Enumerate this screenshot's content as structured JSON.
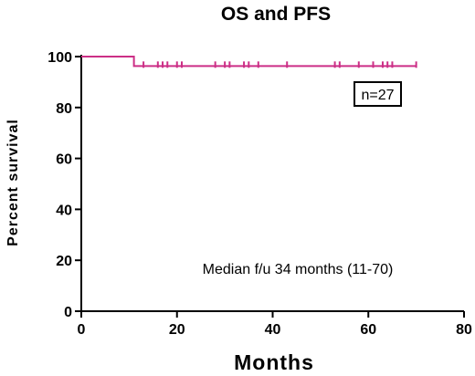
{
  "chart_data": {
    "type": "line",
    "title": "OS and PFS",
    "xlabel": "Months",
    "ylabel": "Percent survival",
    "xlim": [
      0,
      80
    ],
    "ylim": [
      0,
      100
    ],
    "x_ticks": [
      0,
      20,
      40,
      60,
      80
    ],
    "y_ticks": [
      0,
      20,
      40,
      60,
      80,
      100
    ],
    "grid": false,
    "line_color": "#cc2f86",
    "series": [
      {
        "curve": [
          {
            "x": 0,
            "y": 100
          },
          {
            "x": 11,
            "y": 100
          },
          {
            "x": 11,
            "y": 96.3
          },
          {
            "x": 70,
            "y": 96.3
          }
        ],
        "censored": [
          {
            "x": 13,
            "y": 96.3
          },
          {
            "x": 16,
            "y": 96.3
          },
          {
            "x": 17,
            "y": 96.3
          },
          {
            "x": 18,
            "y": 96.3
          },
          {
            "x": 20,
            "y": 96.3
          },
          {
            "x": 21,
            "y": 96.3
          },
          {
            "x": 28,
            "y": 96.3
          },
          {
            "x": 30,
            "y": 96.3
          },
          {
            "x": 31,
            "y": 96.3
          },
          {
            "x": 34,
            "y": 96.3
          },
          {
            "x": 35,
            "y": 96.3
          },
          {
            "x": 37,
            "y": 96.3
          },
          {
            "x": 43,
            "y": 96.3
          },
          {
            "x": 53,
            "y": 96.3
          },
          {
            "x": 54,
            "y": 96.3
          },
          {
            "x": 58,
            "y": 96.3
          },
          {
            "x": 61,
            "y": 96.3
          },
          {
            "x": 63,
            "y": 96.3
          },
          {
            "x": 64,
            "y": 96.3
          },
          {
            "x": 65,
            "y": 96.3
          },
          {
            "x": 70,
            "y": 96.3
          }
        ]
      }
    ],
    "annotations": {
      "n_label": "n=27",
      "median_label": "Median f/u 34 months (11-70)"
    }
  }
}
